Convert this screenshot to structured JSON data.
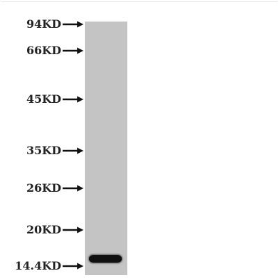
{
  "markers": [
    {
      "label": "94KD"
    },
    {
      "label": "66KD"
    },
    {
      "label": "45KD"
    },
    {
      "label": "35KD"
    },
    {
      "label": "26KD"
    },
    {
      "label": "20KD"
    },
    {
      "label": "14.4KD"
    }
  ],
  "colors": {
    "lane": "#c4c4c4",
    "band": "#101010",
    "text": "#222222"
  }
}
